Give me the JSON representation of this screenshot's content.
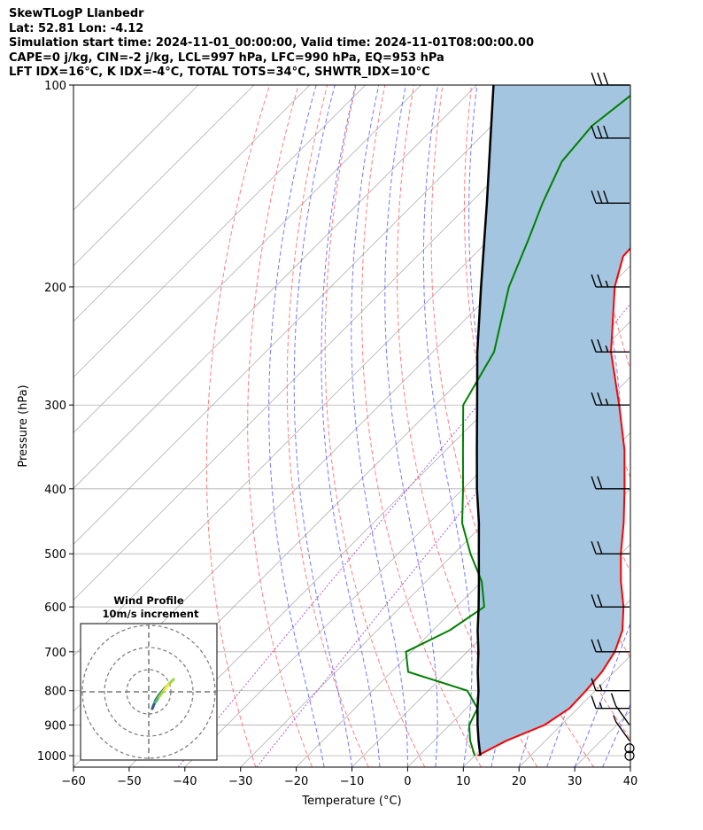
{
  "header": {
    "lines": [
      "SkewTLogP Llanbedr",
      "Lat: 52.81   Lon: -4.12",
      "Simulation start time: 2024-11-01_00:00:00, Valid time: 2024-11-01T08:00:00.00",
      "CAPE=0 j/kg, CIN=-2 j/kg, LCL=997 hPa, LFC=990 hPa, EQ=953 hPa",
      "LFT IDX=16°C, K IDX=-4°C, TOTAL TOTS=34°C, SHWTR_IDX=10°C"
    ]
  },
  "colors": {
    "temperature": "#ff0000",
    "dewpoint": "#008000",
    "parcel": "#000000",
    "cape_fill": "#a3c5df",
    "isotherm": "#b0b0b0",
    "dry_adiabat": "#ff6666",
    "moist_adiabat": "#5555ff",
    "mixing_ratio": "#9933cc"
  },
  "chart_data": {
    "type": "skewt",
    "xlabel": "Temperature (°C)",
    "ylabel": "Pressure (hPa)",
    "xlim": [
      -60,
      40
    ],
    "ylim": [
      1040,
      100
    ],
    "xticks": [
      -60,
      -50,
      -40,
      -30,
      -20,
      -10,
      0,
      10,
      20,
      30,
      40
    ],
    "yticks": [
      100,
      200,
      300,
      400,
      500,
      600,
      700,
      800,
      900,
      1000
    ],
    "temperature": [
      [
        1000,
        10.5
      ],
      [
        950,
        13.0
      ],
      [
        900,
        17.0
      ],
      [
        850,
        18.5
      ],
      [
        800,
        18.3
      ],
      [
        750,
        17.8
      ],
      [
        700,
        16.5
      ],
      [
        650,
        14.0
      ],
      [
        600,
        10.0
      ],
      [
        550,
        5.0
      ],
      [
        500,
        0.0
      ],
      [
        450,
        -5.0
      ],
      [
        400,
        -11.0
      ],
      [
        350,
        -18.0
      ],
      [
        300,
        -27.0
      ],
      [
        250,
        -38.0
      ],
      [
        200,
        -49.0
      ],
      [
        180,
        -53.0
      ],
      [
        160,
        -53.5
      ],
      [
        150,
        -53.0
      ],
      [
        140,
        -52.0
      ],
      [
        130,
        -51.0
      ],
      [
        120,
        -49.5
      ],
      [
        110,
        -47.5
      ],
      [
        100,
        -46.0
      ]
    ],
    "dewpoint": [
      [
        1000,
        10.0
      ],
      [
        950,
        6.5
      ],
      [
        900,
        3.5
      ],
      [
        850,
        2.0
      ],
      [
        800,
        -3.0
      ],
      [
        750,
        -17.0
      ],
      [
        700,
        -21.0
      ],
      [
        650,
        -17.0
      ],
      [
        600,
        -15.0
      ],
      [
        550,
        -20.0
      ],
      [
        500,
        -27.0
      ],
      [
        450,
        -34.0
      ],
      [
        400,
        -40.0
      ],
      [
        350,
        -47.0
      ],
      [
        300,
        -55.0
      ],
      [
        250,
        -59.0
      ],
      [
        200,
        -68.0
      ],
      [
        170,
        -73.0
      ],
      [
        150,
        -77.0
      ],
      [
        130,
        -81.0
      ],
      [
        115,
        -82.0
      ],
      [
        100,
        -80.0
      ]
    ],
    "parcel": [
      [
        1000,
        11.0
      ],
      [
        950,
        8.0
      ],
      [
        900,
        5.0
      ],
      [
        850,
        2.0
      ],
      [
        800,
        -1.0
      ],
      [
        750,
        -4.5
      ],
      [
        700,
        -8.0
      ],
      [
        650,
        -12.0
      ],
      [
        600,
        -16.0
      ],
      [
        550,
        -20.5
      ],
      [
        500,
        -25.5
      ],
      [
        450,
        -31.0
      ],
      [
        400,
        -37.5
      ],
      [
        350,
        -44.5
      ],
      [
        300,
        -52.5
      ],
      [
        250,
        -62.0
      ],
      [
        200,
        -73.0
      ],
      [
        150,
        -87.0
      ],
      [
        120,
        -98.0
      ],
      [
        100,
        -107.0
      ]
    ],
    "wind_barbs": [
      [
        1000,
        "calm"
      ],
      [
        975,
        "calm"
      ],
      [
        950,
        5
      ],
      [
        900,
        10
      ],
      [
        850,
        15
      ],
      [
        800,
        15
      ],
      [
        700,
        20
      ],
      [
        600,
        20
      ],
      [
        500,
        20
      ],
      [
        400,
        20
      ],
      [
        300,
        25
      ],
      [
        250,
        25
      ],
      [
        200,
        25
      ],
      [
        150,
        30
      ],
      [
        120,
        30
      ],
      [
        100,
        30
      ]
    ],
    "hodograph": {
      "title": "Wind Profile",
      "subtitle": "10m/s increment",
      "rings_ms": [
        10,
        20,
        30
      ]
    }
  }
}
